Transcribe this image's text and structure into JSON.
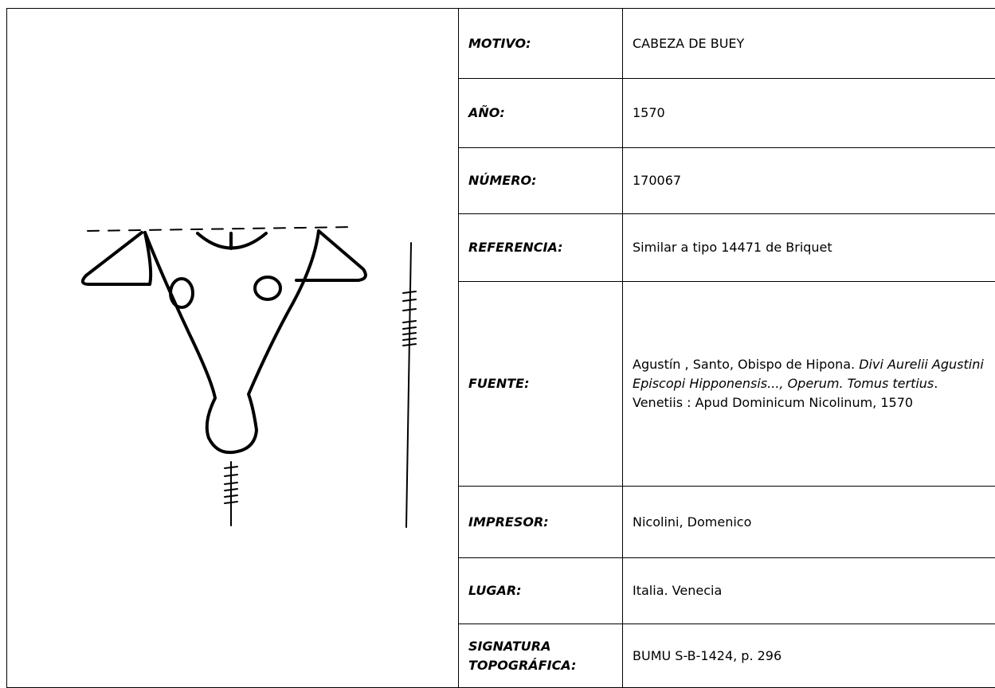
{
  "rows": [
    {
      "label": "MOTIVO:",
      "value": "CABEZA DE BUEY"
    },
    {
      "label": "AÑO:",
      "value": "1570"
    },
    {
      "label": "NÚMERO:",
      "value": "170067"
    },
    {
      "label": "REFERENCIA:",
      "value": "Similar a tipo 14471 de Briquet"
    },
    {
      "label": "FUENTE:",
      "value": {
        "author": "Agustín , Santo, Obispo de Hipona. ",
        "title": "Divi Aurelii Agustini Episcopi Hipponensis..., Operum. Tomus tertius",
        "imprint": ".  Venetiis : Apud Dominicum Nicolinum, 1570"
      }
    },
    {
      "label": "IMPRESOR:",
      "value": "Nicolini, Domenico"
    },
    {
      "label": "LUGAR:",
      "value": "Italia. Venecia"
    },
    {
      "label": "SIGNATURA TOPOGRÁFICA:",
      "value": "BUMU S-B-1424, p. 296"
    }
  ]
}
